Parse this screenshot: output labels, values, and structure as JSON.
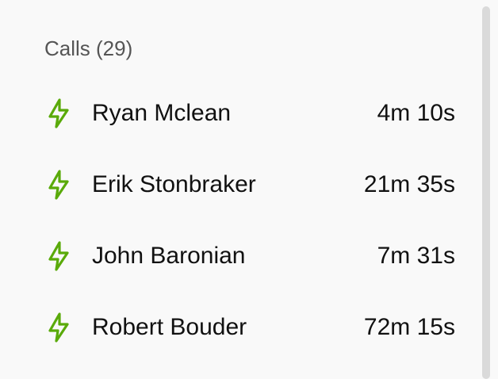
{
  "header": {
    "title": "Calls (29)"
  },
  "accent_color": "#5aaa0a",
  "calls": [
    {
      "icon": "lightning-icon",
      "name": "Ryan Mclean",
      "duration": "4m 10s"
    },
    {
      "icon": "lightning-icon",
      "name": "Erik Stonbraker",
      "duration": "21m 35s"
    },
    {
      "icon": "lightning-icon",
      "name": "John Baronian",
      "duration": "7m 31s"
    },
    {
      "icon": "lightning-icon",
      "name": "Robert Bouder",
      "duration": "72m 15s"
    }
  ]
}
